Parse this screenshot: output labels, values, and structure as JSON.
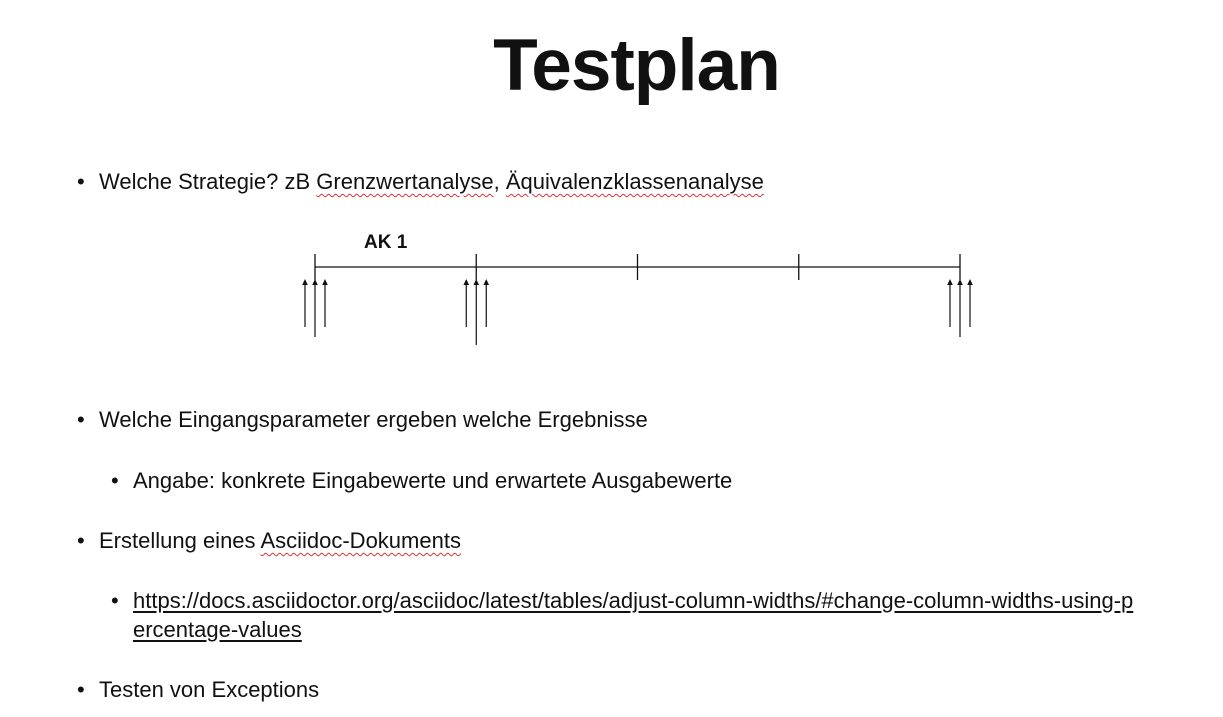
{
  "slide": {
    "title": "Testplan"
  },
  "bullets": {
    "strategy": {
      "prefix": "Welche Strategie? zB ",
      "term1": "Grenzwertanalyse",
      "separator": ", ",
      "term2": "Äquivalenzklassenanalyse"
    },
    "parameters": "Welche Eingangsparameter ergeben welche Ergebnisse",
    "parameters_sub": "Angabe: konkrete Eingabewerte und erwartete Ausgabewerte",
    "document": {
      "prefix": "Erstellung eines ",
      "term": "Asciidoc-Dokuments"
    },
    "link": "https://docs.asciidoctor.org/asciidoc/latest/tables/adjust-column-widths/#change-column-widths-using-percentage-values",
    "exceptions": "Testen von Exceptions"
  },
  "diagram": {
    "label": "AK 1",
    "segments": 4,
    "tested_boundaries": [
      0,
      1,
      4
    ]
  }
}
